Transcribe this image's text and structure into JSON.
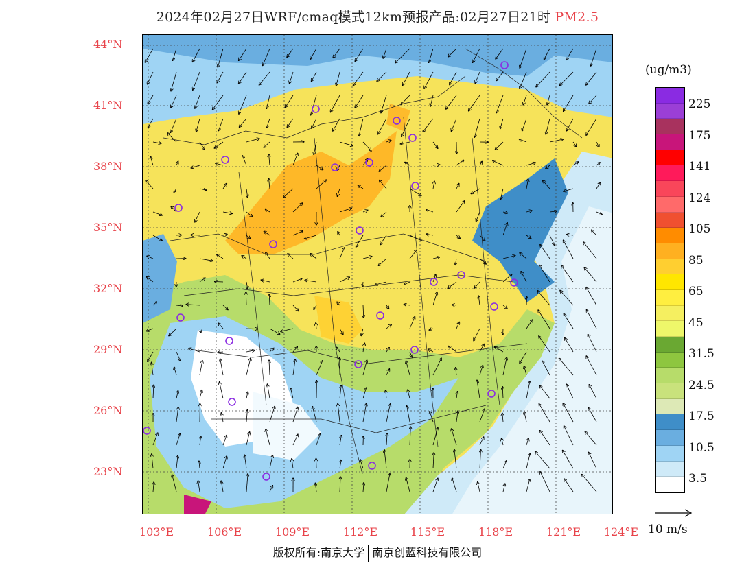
{
  "title": {
    "text": "2024年02月27日WRF/cmaq模式12km预报产品:02月27日21时",
    "pollutant": "PM2.5"
  },
  "map": {
    "lat_labels": [
      "44°N",
      "41°N",
      "38°N",
      "35°N",
      "32°N",
      "29°N",
      "26°N",
      "23°N"
    ],
    "lon_labels": [
      "103°E",
      "106°E",
      "109°E",
      "112°E",
      "115°E",
      "118°E",
      "121°E",
      "124°E"
    ],
    "stations_icon": "circle-marker-icon",
    "accent_color": "#e8434a"
  },
  "legend": {
    "unit": "(ug/m3)",
    "colors": [
      "#8a2be2",
      "#9b3fd6",
      "#a8325e",
      "#c8157a",
      "#ff0000",
      "#ff1a5a",
      "#f9465a",
      "#ff6a6a",
      "#f05030",
      "#ff8c00",
      "#ffb020",
      "#ffcf30",
      "#ffe600",
      "#ffee40",
      "#f5ef60",
      "#eef76a",
      "#6aa832",
      "#8ec63f",
      "#b7dc6a",
      "#c9e27c",
      "#dde9b6",
      "#3f8ec8",
      "#6aaee0",
      "#9fd4f4",
      "#cfeaf8",
      "#ffffff"
    ],
    "ticks": [
      "225",
      "175",
      "141",
      "124",
      "105",
      "85",
      "65",
      "45",
      "31.5",
      "24.5",
      "17.5",
      "10.5",
      "3.5"
    ]
  },
  "wind_scale": {
    "label": "10 m/s",
    "icon": "arrow-right-icon"
  },
  "footer": {
    "left": "版权所有:南京大学",
    "right": "南京创蓝科技有限公司"
  }
}
